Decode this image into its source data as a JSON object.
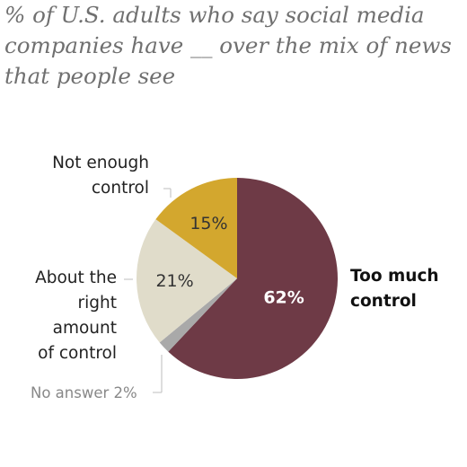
{
  "subtitle": "% of U.S. adults who say social media\ncompanies have __ over the mix of news\nthat people see",
  "colors": {
    "too_much": "#6e3a46",
    "not_enough": "#d3a72e",
    "about_right": "#e0dcca",
    "no_answer": "#a9a9a9",
    "leader": "#bdbdbd",
    "white_text": "#ffffff",
    "dark_text": "#333333"
  },
  "chart_data": {
    "type": "pie",
    "slices": [
      {
        "label": "Too much control",
        "value": 62,
        "value_label": "62%",
        "color": "#6e3a46"
      },
      {
        "label": "No answer",
        "value": 2,
        "value_label": "No answer 2%",
        "color": "#a9a9a9"
      },
      {
        "label": "About the right amount of control",
        "value": 21,
        "value_label": "21%",
        "color": "#e0dcca"
      },
      {
        "label": "Not enough control",
        "value": 15,
        "value_label": "15%",
        "color": "#d3a72e"
      }
    ]
  },
  "labels": {
    "too_much": "Too much\ncontrol",
    "not_enough": "Not enough\ncontrol",
    "about_right": "About the\nright amount\nof control",
    "no_answer": "No answer 2%"
  }
}
